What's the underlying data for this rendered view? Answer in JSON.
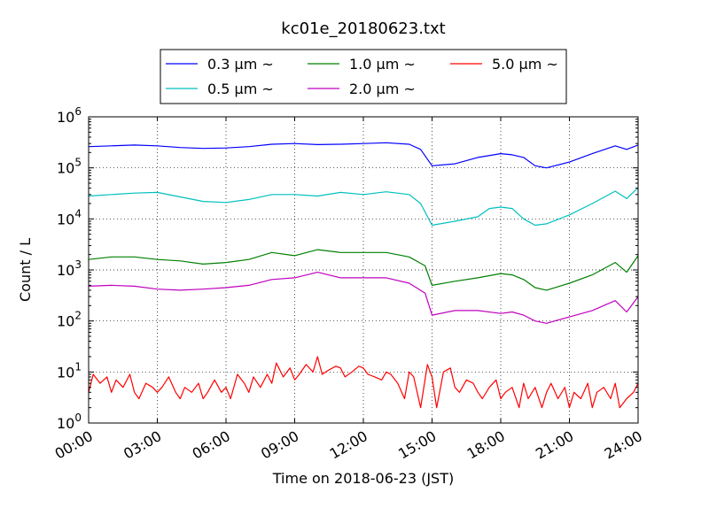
{
  "chart_data": {
    "type": "line",
    "title": "kc01e_20180623.txt",
    "xlabel": "Time on 2018-06-23 (JST)",
    "ylabel": "Count / L",
    "yscale": "log",
    "xlim": [
      0,
      24
    ],
    "ylim": [
      1,
      1000000
    ],
    "grid": true,
    "legend_position": "top",
    "x_tick_labels": [
      "00:00",
      "03:00",
      "06:00",
      "09:00",
      "12:00",
      "15:00",
      "18:00",
      "21:00",
      "24:00"
    ],
    "y_tick_labels": [
      {
        "base": "10",
        "exp": "0"
      },
      {
        "base": "10",
        "exp": "1"
      },
      {
        "base": "10",
        "exp": "2"
      },
      {
        "base": "10",
        "exp": "3"
      },
      {
        "base": "10",
        "exp": "4"
      },
      {
        "base": "10",
        "exp": "5"
      },
      {
        "base": "10",
        "exp": "6"
      }
    ],
    "series": [
      {
        "name": "0.3 μm ~",
        "color": "#0000ff",
        "x": [
          0,
          1,
          2,
          3,
          4,
          5,
          6,
          7,
          8,
          9,
          10,
          11,
          12,
          13,
          14,
          14.5,
          15,
          16,
          17,
          18,
          18.5,
          19,
          19.5,
          20,
          21,
          22,
          23,
          23.5,
          24
        ],
        "y": [
          260000,
          270000,
          280000,
          270000,
          250000,
          240000,
          245000,
          260000,
          290000,
          300000,
          285000,
          290000,
          300000,
          310000,
          290000,
          230000,
          110000,
          120000,
          160000,
          190000,
          180000,
          160000,
          110000,
          100000,
          130000,
          190000,
          270000,
          230000,
          280000
        ]
      },
      {
        "name": "0.5 μm ~",
        "color": "#00bfbf",
        "x": [
          0,
          1,
          2,
          3,
          4,
          5,
          6,
          7,
          8,
          9,
          10,
          11,
          12,
          13,
          14,
          14.5,
          15,
          16,
          17,
          17.5,
          18,
          18.5,
          19,
          19.5,
          20,
          21,
          22,
          23,
          23.5,
          24
        ],
        "y": [
          28000,
          30000,
          32000,
          33000,
          27000,
          22000,
          21000,
          24000,
          30000,
          30000,
          28000,
          33000,
          30000,
          34000,
          30000,
          20000,
          7500,
          9000,
          11000,
          16000,
          17000,
          16000,
          10000,
          7500,
          8000,
          12000,
          20000,
          35000,
          25000,
          41000
        ]
      },
      {
        "name": "1.0 μm ~",
        "color": "#008000",
        "x": [
          0,
          1,
          2,
          3,
          4,
          5,
          6,
          7,
          8,
          9,
          10,
          11,
          12,
          13,
          14,
          14.7,
          15,
          16,
          17,
          18,
          18.5,
          19,
          19.5,
          20,
          21,
          22,
          23,
          23.5,
          24
        ],
        "y": [
          1600,
          1800,
          1800,
          1600,
          1500,
          1300,
          1400,
          1600,
          2200,
          1900,
          2500,
          2200,
          2200,
          2200,
          1800,
          1200,
          500,
          600,
          700,
          850,
          800,
          650,
          450,
          400,
          550,
          800,
          1400,
          900,
          1900
        ]
      },
      {
        "name": "2.0 μm ~",
        "color": "#bf00bf",
        "x": [
          0,
          1,
          2,
          3,
          4,
          5,
          6,
          7,
          8,
          9,
          10,
          11,
          12,
          13,
          14,
          14.7,
          15,
          16,
          17,
          18,
          18.5,
          19,
          19.5,
          20,
          21,
          22,
          23,
          23.5,
          24
        ],
        "y": [
          480,
          500,
          480,
          420,
          400,
          420,
          450,
          500,
          650,
          700,
          900,
          700,
          700,
          700,
          550,
          350,
          130,
          160,
          160,
          140,
          150,
          130,
          100,
          90,
          120,
          160,
          250,
          150,
          300
        ]
      },
      {
        "name": "5.0 μm ~",
        "color": "#ff0000",
        "x": [
          0,
          0.2,
          0.5,
          0.8,
          1,
          1.2,
          1.5,
          1.8,
          2,
          2.2,
          2.5,
          2.8,
          3,
          3.2,
          3.5,
          3.8,
          4,
          4.2,
          4.5,
          4.8,
          5,
          5.2,
          5.5,
          5.8,
          6,
          6.2,
          6.5,
          6.8,
          7,
          7.2,
          7.5,
          7.8,
          8,
          8.2,
          8.5,
          8.8,
          9,
          9.2,
          9.5,
          9.8,
          10,
          10.2,
          10.5,
          10.8,
          11,
          11.2,
          11.5,
          11.8,
          12,
          12.2,
          12.5,
          12.8,
          13,
          13.2,
          13.5,
          13.8,
          14,
          14.2,
          14.5,
          14.8,
          15,
          15.2,
          15.5,
          15.8,
          16,
          16.2,
          16.5,
          16.8,
          17,
          17.2,
          17.5,
          17.8,
          18,
          18.2,
          18.5,
          18.8,
          19,
          19.2,
          19.5,
          19.8,
          20,
          20.2,
          20.5,
          20.8,
          21,
          21.2,
          21.5,
          21.8,
          22,
          22.2,
          22.5,
          22.8,
          23,
          23.2,
          23.5,
          23.8,
          24
        ],
        "y": [
          4,
          9,
          6,
          8,
          4,
          7,
          5,
          9,
          4,
          3,
          6,
          5,
          4,
          5,
          8,
          4,
          3,
          5,
          4,
          6,
          3,
          4,
          7,
          4,
          5,
          3,
          9,
          6,
          4,
          8,
          5,
          9,
          6,
          15,
          8,
          12,
          7,
          9,
          14,
          10,
          20,
          9,
          11,
          13,
          12,
          8,
          10,
          13,
          12,
          9,
          8,
          7,
          10,
          9,
          6,
          3,
          10,
          8,
          2,
          14,
          8,
          2,
          10,
          12,
          5,
          4,
          7,
          6,
          4,
          3,
          5,
          7,
          3,
          4,
          5,
          2,
          6,
          3,
          5,
          2,
          4,
          6,
          3,
          5,
          2,
          4,
          3,
          6,
          2,
          4,
          5,
          3,
          6,
          2,
          3,
          4,
          6
        ]
      }
    ]
  }
}
